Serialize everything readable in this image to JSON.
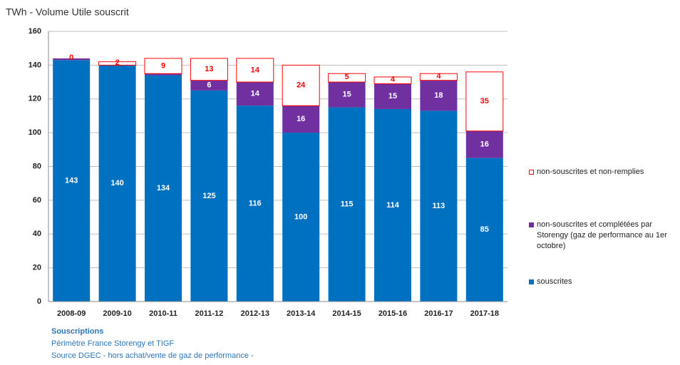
{
  "chart_data": {
    "type": "stacked_bar",
    "title": "TWh -   Volume Utile souscrit",
    "categories": [
      "2008-09",
      "2009-10",
      "2010-11",
      "2011-12",
      "2012-13",
      "2013-14",
      "2014-15",
      "2015-16",
      "2016-17",
      "2017-18"
    ],
    "series": [
      {
        "name": "souscrites",
        "color": "#0070c0",
        "values": [
          143,
          140,
          134,
          125,
          116,
          100,
          115,
          114,
          113,
          85
        ]
      },
      {
        "name": "non-souscrites et complétées par Storengy (gaz de performance au 1er octobre)",
        "color": "#7030a0",
        "values": [
          1,
          0,
          1,
          6,
          14,
          16,
          15,
          15,
          18,
          16
        ],
        "value_labels": [
          null,
          null,
          null,
          "6",
          "14",
          "16",
          "15",
          "15",
          "18",
          "16"
        ]
      },
      {
        "name": "non-souscrites et non-remplies",
        "color": "#ff0000",
        "fill": "#ffffff",
        "values": [
          0,
          2,
          9,
          13,
          14,
          24,
          5,
          4,
          4,
          35
        ]
      }
    ],
    "ylim": [
      0,
      160
    ],
    "yticks": [
      0,
      20,
      40,
      60,
      80,
      100,
      120,
      140,
      160
    ],
    "grid": true,
    "footnotes": [
      "Souscriptions",
      "Périmètre France  Storengy et TIGF",
      "Source DGEC  - hors achat/vente  de gaz de performance -"
    ]
  }
}
